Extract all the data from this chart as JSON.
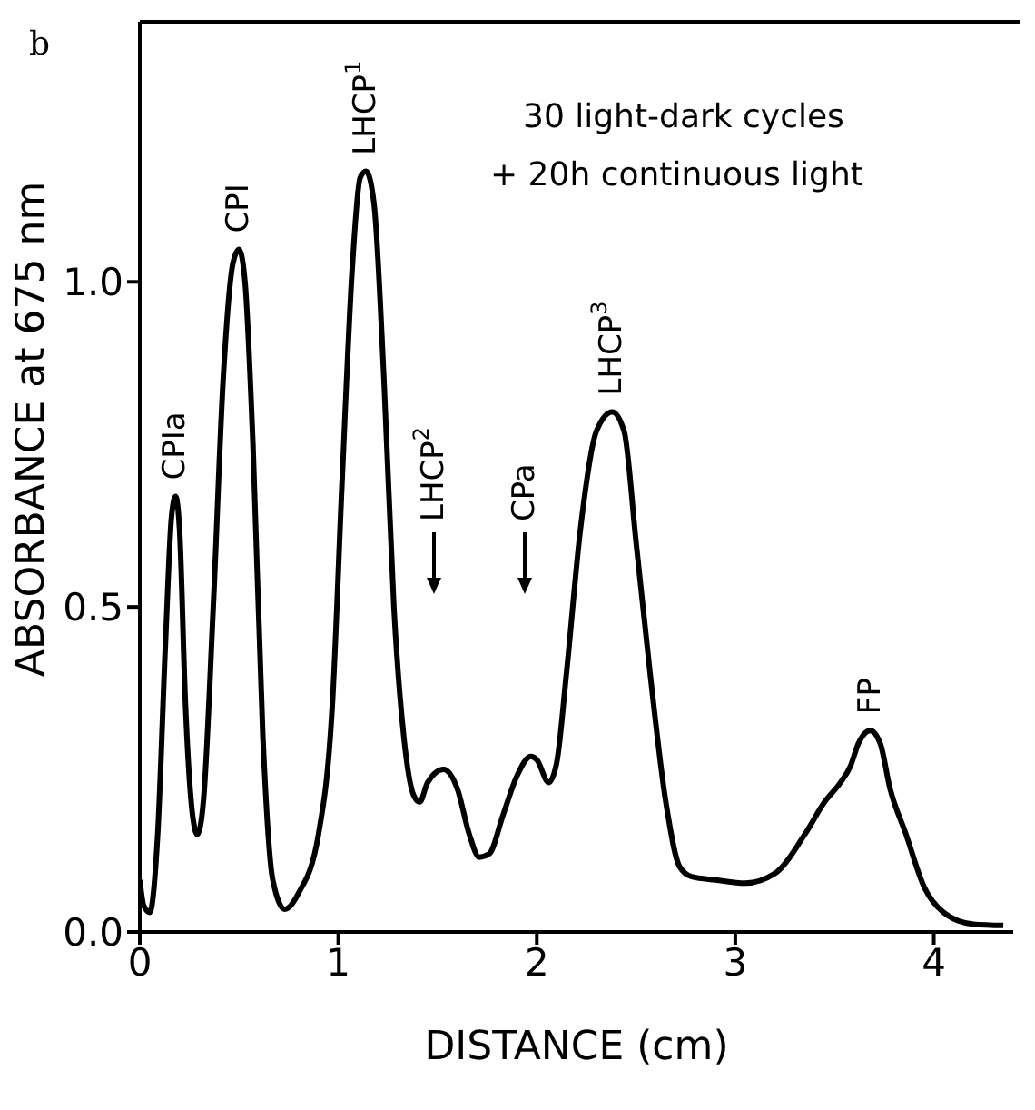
{
  "chart_data": {
    "type": "line",
    "title": "b",
    "xlabel": "DISTANCE (cm)",
    "ylabel": "ABSORBANCE at 675 nm",
    "xlim": [
      0,
      4.4
    ],
    "ylim": [
      0,
      1.4
    ],
    "xticks": [
      0,
      1,
      2,
      3,
      4
    ],
    "yticks": [
      {
        "value": 0,
        "label": "0.0"
      },
      0.5,
      {
        "value": 1,
        "label": "1.0"
      }
    ],
    "marker": "none",
    "line_style": "solid",
    "annotations": [
      {
        "text": "CPIa",
        "x": 0.18,
        "y": 0.67
      },
      {
        "text": "CPI",
        "x": 0.5,
        "y": 1.05
      },
      {
        "text": "LHCP$^{1}$",
        "x": 1.14,
        "y": 1.17
      },
      {
        "text": "LHCP$^{3}$",
        "x": 2.38,
        "y": 0.8
      },
      {
        "text": "FP",
        "x": 3.68,
        "y": 0.31
      },
      "LHCP$^{2}$",
      "CPa",
      "30 light-dark cycles",
      "+ 20h continuous light"
    ],
    "series": [
      {
        "color": "#000000",
        "x": [
          0,
          0.02,
          0.05,
          0.09,
          0.13,
          0.16,
          0.18,
          0.2,
          0.23,
          0.27,
          0.29,
          0.32,
          0.37,
          0.42,
          0.47,
          0.5,
          0.53,
          0.57,
          0.62,
          0.67,
          0.73,
          0.8,
          0.9,
          0.97,
          1.02,
          1.07,
          1.11,
          1.14,
          1.18,
          1.23,
          1.28,
          1.33,
          1.38,
          1.41,
          1.45,
          1.53,
          1.6,
          1.66,
          1.71,
          1.76,
          1.83,
          1.9,
          1.97,
          2.0,
          2.06,
          2.1,
          2.15,
          2.22,
          2.3,
          2.38,
          2.44,
          2.5,
          2.57,
          2.65,
          2.72,
          2.78,
          2.9,
          3.05,
          3.2,
          3.35,
          3.45,
          3.53,
          3.58,
          3.62,
          3.68,
          3.73,
          3.78,
          3.86,
          3.95,
          4.05,
          4.2,
          4.35
        ],
        "values": [
          0.08,
          0.04,
          0.03,
          0.15,
          0.45,
          0.64,
          0.67,
          0.62,
          0.35,
          0.17,
          0.15,
          0.2,
          0.5,
          0.85,
          1.03,
          1.05,
          1.0,
          0.75,
          0.3,
          0.08,
          0.035,
          0.06,
          0.15,
          0.35,
          0.7,
          1.02,
          1.16,
          1.17,
          1.12,
          0.85,
          0.5,
          0.3,
          0.21,
          0.2,
          0.23,
          0.25,
          0.22,
          0.15,
          0.115,
          0.12,
          0.18,
          0.24,
          0.27,
          0.265,
          0.23,
          0.26,
          0.4,
          0.62,
          0.77,
          0.8,
          0.77,
          0.6,
          0.4,
          0.2,
          0.1,
          0.085,
          0.08,
          0.075,
          0.09,
          0.15,
          0.2,
          0.23,
          0.255,
          0.29,
          0.31,
          0.29,
          0.22,
          0.15,
          0.07,
          0.03,
          0.012,
          0.01
        ]
      }
    ]
  }
}
